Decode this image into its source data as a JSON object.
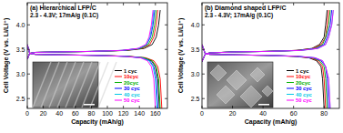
{
  "chart_data": [
    {
      "type": "line",
      "title": "(a) Hierarchical LFP/C",
      "subtitle": "2.3 - 4.3V; 17mA/g (0.1C)",
      "x_label": "Capacity (mAh/g)",
      "y_label": "Cell Voltage (V vs. Li/Li⁺)",
      "xlim": [
        0,
        175
      ],
      "xticks": [
        0,
        20,
        40,
        60,
        80,
        100,
        120,
        140,
        160
      ],
      "ylim": [
        2.3,
        4.45
      ],
      "yticks": [
        2.5,
        {
          "value": 3,
          "label": "3.0"
        },
        3.5,
        {
          "value": 4,
          "label": "4.0"
        }
      ],
      "grid": false,
      "legend": "lower right",
      "series": [
        {
          "name": "1 cyc",
          "color": "#000000",
          "x": [
            0,
            3,
            10,
            42,
            83,
            125,
            146,
            156,
            161,
            164,
            166,
            166,
            0,
            3,
            10,
            41,
            83,
            124,
            145,
            155,
            160,
            163,
            165
          ],
          "values": [
            3.3,
            3.42,
            3.44,
            3.45,
            3.46,
            3.48,
            3.52,
            3.6,
            3.75,
            4,
            4.3,
            null,
            3.6,
            3.42,
            3.4,
            3.39,
            3.38,
            3.36,
            3.33,
            3.27,
            3.15,
            2.9,
            2.3
          ]
        },
        {
          "name": "10cyc",
          "color": "#ff0000",
          "x": [
            0,
            3,
            10,
            41,
            82,
            122,
            143,
            153,
            158,
            161,
            163,
            163,
            0,
            3,
            10,
            42,
            84,
            126,
            148,
            158,
            163,
            166,
            168
          ],
          "values": [
            3.3,
            3.42,
            3.44,
            3.45,
            3.46,
            3.48,
            3.52,
            3.6,
            3.75,
            4,
            4.3,
            null,
            3.6,
            3.42,
            3.4,
            3.39,
            3.38,
            3.36,
            3.33,
            3.27,
            3.15,
            2.9,
            2.3
          ]
        },
        {
          "name": "20cyc",
          "color": "#00b000",
          "x": [
            0,
            3,
            10,
            40,
            81,
            121,
            142,
            151,
            156,
            159,
            161,
            161,
            0,
            3,
            10,
            42,
            83,
            125,
            146,
            156,
            161,
            164,
            166
          ],
          "values": [
            3.3,
            3.42,
            3.44,
            3.45,
            3.46,
            3.48,
            3.52,
            3.6,
            3.75,
            4,
            4.3,
            null,
            3.6,
            3.42,
            3.4,
            3.39,
            3.38,
            3.36,
            3.33,
            3.27,
            3.15,
            2.9,
            2.3
          ]
        },
        {
          "name": "30 cyc",
          "color": "#0000ff",
          "x": [
            0,
            3,
            10,
            40,
            80,
            119,
            140,
            149,
            154,
            157,
            159,
            159,
            0,
            3,
            10,
            41,
            82,
            122,
            143,
            153,
            158,
            161,
            163
          ],
          "values": [
            3.3,
            3.42,
            3.44,
            3.45,
            3.46,
            3.48,
            3.52,
            3.6,
            3.75,
            4,
            4.3,
            null,
            3.6,
            3.42,
            3.4,
            3.39,
            3.38,
            3.36,
            3.33,
            3.27,
            3.15,
            2.9,
            2.3
          ]
        },
        {
          "name": "40 cyc",
          "color": "#00c8e6",
          "x": [
            0,
            3,
            10,
            40,
            79,
            119,
            139,
            149,
            153,
            156,
            158,
            158,
            0,
            3,
            10,
            41,
            81,
            122,
            143,
            152,
            157,
            160,
            162
          ],
          "values": [
            3.3,
            3.42,
            3.44,
            3.45,
            3.46,
            3.48,
            3.52,
            3.6,
            3.75,
            4,
            4.3,
            null,
            3.6,
            3.42,
            3.4,
            3.39,
            3.38,
            3.36,
            3.33,
            3.27,
            3.15,
            2.9,
            2.3
          ]
        },
        {
          "name": "50 cyc",
          "color": "#ff00ff",
          "x": [
            0,
            3,
            10,
            39,
            79,
            118,
            138,
            148,
            152,
            155,
            157,
            157,
            0,
            3,
            10,
            40,
            80,
            120,
            141,
            150,
            155,
            158,
            160
          ],
          "values": [
            3.3,
            3.42,
            3.44,
            3.45,
            3.46,
            3.48,
            3.52,
            3.6,
            3.75,
            4,
            4.3,
            null,
            3.6,
            3.42,
            3.4,
            3.39,
            3.38,
            3.36,
            3.33,
            3.27,
            3.15,
            2.9,
            2.3
          ]
        }
      ]
    },
    {
      "type": "line",
      "title": "(b) Diamond shaped LFP/C",
      "subtitle": "2.3 - 4.3V; 17mA/g (0.1C)",
      "x_label": "Capacity (mAh/g)",
      "y_label": "Cell Voltage (V vs. Li/Li⁺)",
      "xlim": [
        0,
        90
      ],
      "xticks": [
        0,
        20,
        40,
        60,
        80
      ],
      "ylim": [
        2.3,
        4.45
      ],
      "yticks": [
        2.5,
        {
          "value": 3,
          "label": "3.0"
        },
        3.5,
        {
          "value": 4,
          "label": "4.0"
        }
      ],
      "grid": false,
      "legend": "lower right",
      "series": [
        {
          "name": "1 cyc",
          "color": "#000000",
          "x": [
            0,
            2,
            5,
            21,
            41,
            62,
            72,
            77,
            80,
            81,
            82,
            82,
            0,
            2,
            5,
            20,
            40,
            60,
            70,
            75,
            78,
            79,
            80
          ],
          "values": [
            3.25,
            3.4,
            3.43,
            3.45,
            3.46,
            3.48,
            3.52,
            3.6,
            3.75,
            4,
            4.3,
            null,
            3.6,
            3.42,
            3.4,
            3.39,
            3.38,
            3.36,
            3.33,
            3.27,
            3.15,
            2.9,
            2.3
          ]
        },
        {
          "name": "10cyc",
          "color": "#ff0000",
          "x": [
            0,
            2,
            5,
            21,
            42,
            62,
            73,
            78,
            81,
            82,
            83,
            83,
            0,
            2,
            5,
            20,
            41,
            61,
            71,
            76,
            79,
            80,
            81
          ],
          "values": [
            3.25,
            3.4,
            3.43,
            3.45,
            3.46,
            3.48,
            3.52,
            3.6,
            3.75,
            4,
            4.3,
            null,
            3.6,
            3.42,
            3.4,
            3.39,
            3.38,
            3.36,
            3.33,
            3.27,
            3.15,
            2.9,
            2.3
          ]
        },
        {
          "name": "20cyc",
          "color": "#00b000",
          "x": [
            0,
            2,
            5,
            21,
            42,
            63,
            74,
            79,
            81,
            83,
            84,
            84,
            0,
            2,
            5,
            21,
            41,
            62,
            72,
            77,
            80,
            81,
            82
          ],
          "values": [
            3.25,
            3.4,
            3.43,
            3.45,
            3.46,
            3.48,
            3.52,
            3.6,
            3.75,
            4,
            4.3,
            null,
            3.6,
            3.42,
            3.4,
            3.39,
            3.38,
            3.36,
            3.33,
            3.27,
            3.15,
            2.9,
            2.3
          ]
        },
        {
          "name": "30 cyc",
          "color": "#0000ff",
          "x": [
            0,
            2,
            5,
            21,
            43,
            64,
            75,
            80,
            82,
            84,
            85,
            85,
            0,
            2,
            5,
            21,
            42,
            62,
            73,
            78,
            81,
            82,
            83
          ],
          "values": [
            3.25,
            3.4,
            3.43,
            3.45,
            3.46,
            3.48,
            3.52,
            3.6,
            3.75,
            4,
            4.3,
            null,
            3.6,
            3.42,
            3.4,
            3.39,
            3.38,
            3.36,
            3.33,
            3.27,
            3.15,
            2.9,
            2.3
          ]
        },
        {
          "name": "40 cyc",
          "color": "#00c8e6",
          "x": [
            0,
            2,
            5,
            22,
            43,
            65,
            76,
            81,
            83,
            85,
            86,
            86,
            0,
            2,
            5,
            21,
            42,
            63,
            74,
            79,
            81,
            83,
            84
          ],
          "values": [
            3.25,
            3.4,
            3.43,
            3.45,
            3.46,
            3.48,
            3.52,
            3.6,
            3.75,
            4,
            4.3,
            null,
            3.6,
            3.42,
            3.4,
            3.39,
            3.38,
            3.36,
            3.33,
            3.27,
            3.15,
            2.9,
            2.3
          ]
        },
        {
          "name": "50 cyc",
          "color": "#ff00ff",
          "x": [
            0,
            2,
            5,
            22,
            43,
            65,
            76,
            81,
            83,
            85,
            86,
            86,
            0,
            2,
            5,
            21,
            42,
            63,
            74,
            79,
            81,
            83,
            84
          ],
          "values": [
            3.25,
            3.4,
            3.43,
            3.45,
            3.46,
            3.48,
            3.52,
            3.6,
            3.75,
            4,
            4.3,
            null,
            3.6,
            3.42,
            3.4,
            3.39,
            3.38,
            3.36,
            3.33,
            3.27,
            3.15,
            2.9,
            2.3
          ]
        }
      ]
    }
  ]
}
